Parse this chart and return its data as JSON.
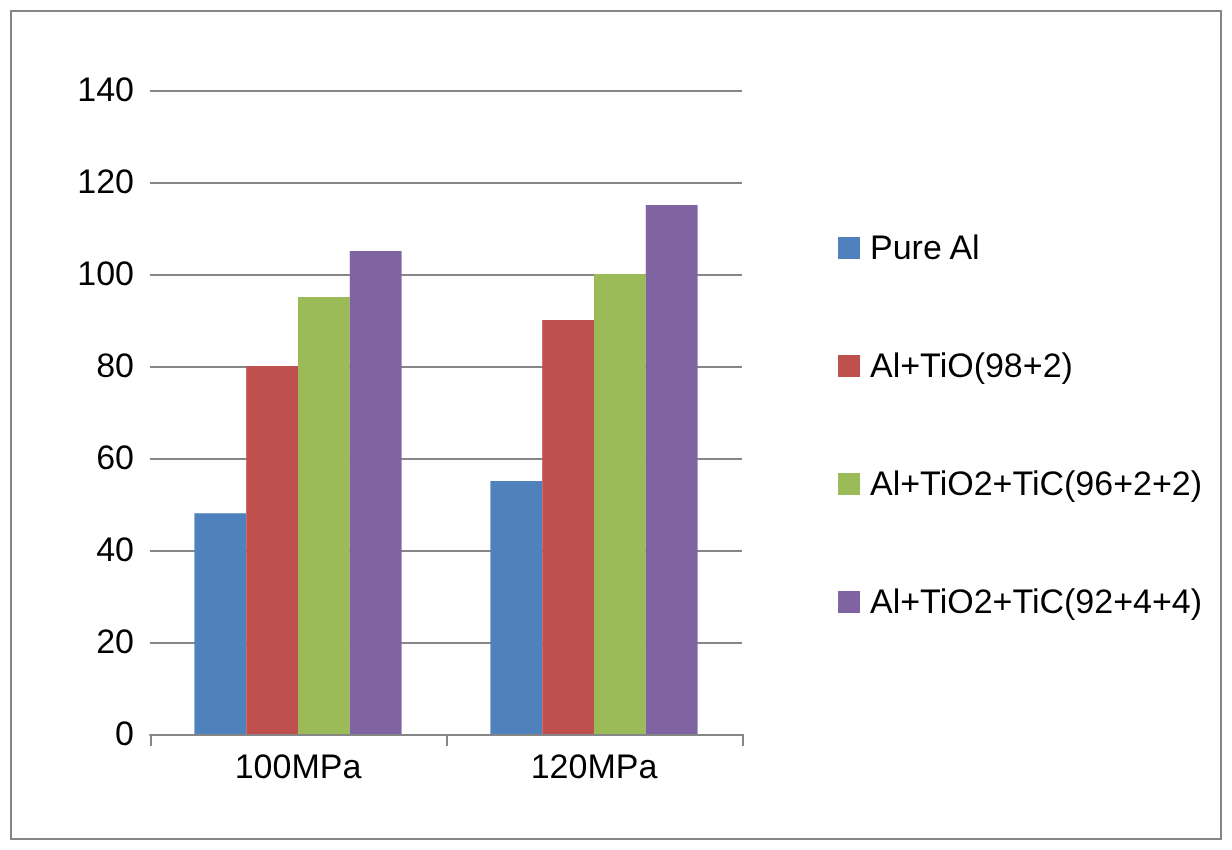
{
  "chart_data": {
    "type": "bar",
    "categories": [
      "100MPa",
      "120MPa"
    ],
    "series": [
      {
        "name": "Pure Al",
        "color": "#4f81bd",
        "values": [
          48,
          55
        ]
      },
      {
        "name": "Al+TiO(98+2)",
        "color": "#c0504d",
        "values": [
          80,
          90
        ]
      },
      {
        "name": "Al+TiO2+TiC(96+2+2)",
        "color": "#9bbb59",
        "values": [
          95,
          100
        ]
      },
      {
        "name": "Al+TiO2+TiC(92+4+4)",
        "color": "#8064a2",
        "values": [
          105,
          115
        ]
      }
    ],
    "ylim": [
      0,
      140
    ],
    "yticks": [
      0,
      20,
      40,
      60,
      80,
      100,
      120,
      140
    ],
    "grid": "y",
    "legend": "right"
  }
}
